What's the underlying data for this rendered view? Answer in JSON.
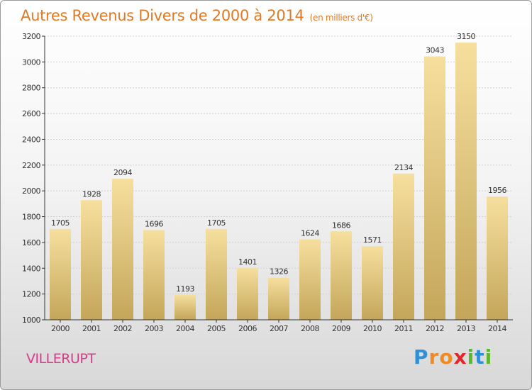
{
  "header": {
    "title": "Autres Revenus Divers de 2000 à 2014",
    "subtitle": "(en milliers d'€)"
  },
  "footer": {
    "commune": "VILLERUPT",
    "logo": {
      "letters": [
        "P",
        "r",
        "o",
        "x",
        "i",
        "t",
        "i"
      ],
      "colors": [
        "#2f8fd8",
        "#f08a24",
        "#f08a24",
        "#e2262a",
        "#5cb82e",
        "#2f8fd8",
        "#5cb82e"
      ]
    }
  },
  "colors": {
    "bar_light": "#f6df9e",
    "bar_dark": "#c4a65a",
    "axis": "#333333",
    "grid": "#cfcfcf"
  },
  "chart_data": {
    "type": "bar",
    "title": "Autres Revenus Divers de 2000 à 2014",
    "xlabel": "",
    "ylabel": "",
    "categories": [
      "2000",
      "2001",
      "2002",
      "2003",
      "2004",
      "2005",
      "2006",
      "2007",
      "2008",
      "2009",
      "2010",
      "2011",
      "2012",
      "2013",
      "2014"
    ],
    "values": [
      1705,
      1928,
      2094,
      1696,
      1193,
      1705,
      1401,
      1326,
      1624,
      1686,
      1571,
      2134,
      3043,
      3150,
      1956
    ],
    "ylim": [
      1000,
      3200
    ],
    "yticks": [
      1000,
      1200,
      1400,
      1600,
      1800,
      2000,
      2200,
      2400,
      2600,
      2800,
      3000,
      3200
    ],
    "grid": true,
    "legend": "none"
  }
}
